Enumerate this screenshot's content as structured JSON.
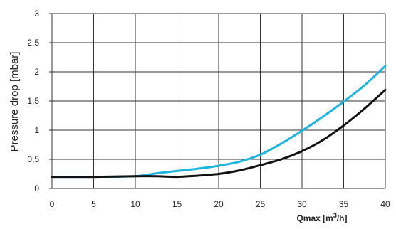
{
  "chart_data": {
    "type": "line",
    "xlabel_main": "Qmax [m",
    "xlabel_sup": "3",
    "xlabel_tail": "/h]",
    "ylabel": "Pressure drop [mbar]",
    "xlim": [
      0,
      40
    ],
    "ylim": [
      0,
      3
    ],
    "x_ticks": [
      "0",
      "5",
      "10",
      "15",
      "20",
      "25",
      "30",
      "35",
      "40"
    ],
    "y_ticks": [
      "0",
      "0,5",
      "1",
      "1,5",
      "2",
      "2,5",
      "3"
    ],
    "grid": true,
    "series": [
      {
        "color": "#1eb4e0",
        "x": [
          0,
          5,
          10,
          12.5,
          15,
          17.5,
          20,
          22.5,
          25,
          27.5,
          30,
          32.5,
          35,
          37.5,
          40
        ],
        "y": [
          0.2,
          0.2,
          0.21,
          0.26,
          0.3,
          0.34,
          0.39,
          0.46,
          0.58,
          0.77,
          0.99,
          1.23,
          1.49,
          1.77,
          2.1
        ]
      },
      {
        "color": "#111111",
        "x": [
          0,
          5,
          10,
          12.5,
          15,
          17.5,
          20,
          22.5,
          25,
          27.5,
          30,
          32.5,
          35,
          37.5,
          40
        ],
        "y": [
          0.2,
          0.2,
          0.21,
          0.21,
          0.2,
          0.22,
          0.25,
          0.31,
          0.4,
          0.5,
          0.64,
          0.83,
          1.08,
          1.37,
          1.69
        ]
      }
    ]
  }
}
